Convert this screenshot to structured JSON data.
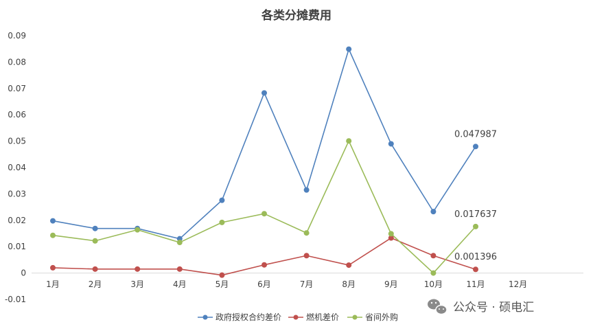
{
  "chart_data": {
    "type": "line",
    "title": "各类分摊费用",
    "categories": [
      "1月",
      "2月",
      "3月",
      "4月",
      "5月",
      "6月",
      "7月",
      "8月",
      "9月",
      "10月",
      "11月",
      "12月"
    ],
    "y_ticks": [
      "0.09",
      "0.08",
      "0.07",
      "0.06",
      "0.05",
      "0.04",
      "0.03",
      "0.02",
      "0.01",
      "0",
      "-0.01"
    ],
    "ylim": [
      -0.01,
      0.09
    ],
    "grid": false,
    "legend_position": "bottom",
    "series": [
      {
        "name": "政府授权合约差价",
        "color": "#4F81BD",
        "values": [
          0.0198,
          0.0169,
          0.0169,
          0.013,
          0.0276,
          0.0683,
          0.0315,
          0.0849,
          0.049,
          0.0233,
          0.047987,
          null
        ],
        "end_label": "0.047987"
      },
      {
        "name": "燃机差价",
        "color": "#C0504D",
        "values": [
          0.002,
          0.0015,
          0.0015,
          0.0015,
          -0.0008,
          0.0031,
          0.0066,
          0.003,
          0.0133,
          0.0066,
          0.001396,
          null
        ],
        "end_label": "0.001396"
      },
      {
        "name": "省间外购",
        "color": "#9BBB59",
        "values": [
          0.0143,
          0.0122,
          0.0164,
          0.0116,
          0.0192,
          0.0225,
          0.0152,
          0.0501,
          0.0149,
          0.0,
          0.017637,
          null
        ],
        "end_label": "0.017637"
      }
    ]
  },
  "watermark": {
    "text": "公众号 · 硕电汇",
    "icon": "wechat-icon"
  }
}
